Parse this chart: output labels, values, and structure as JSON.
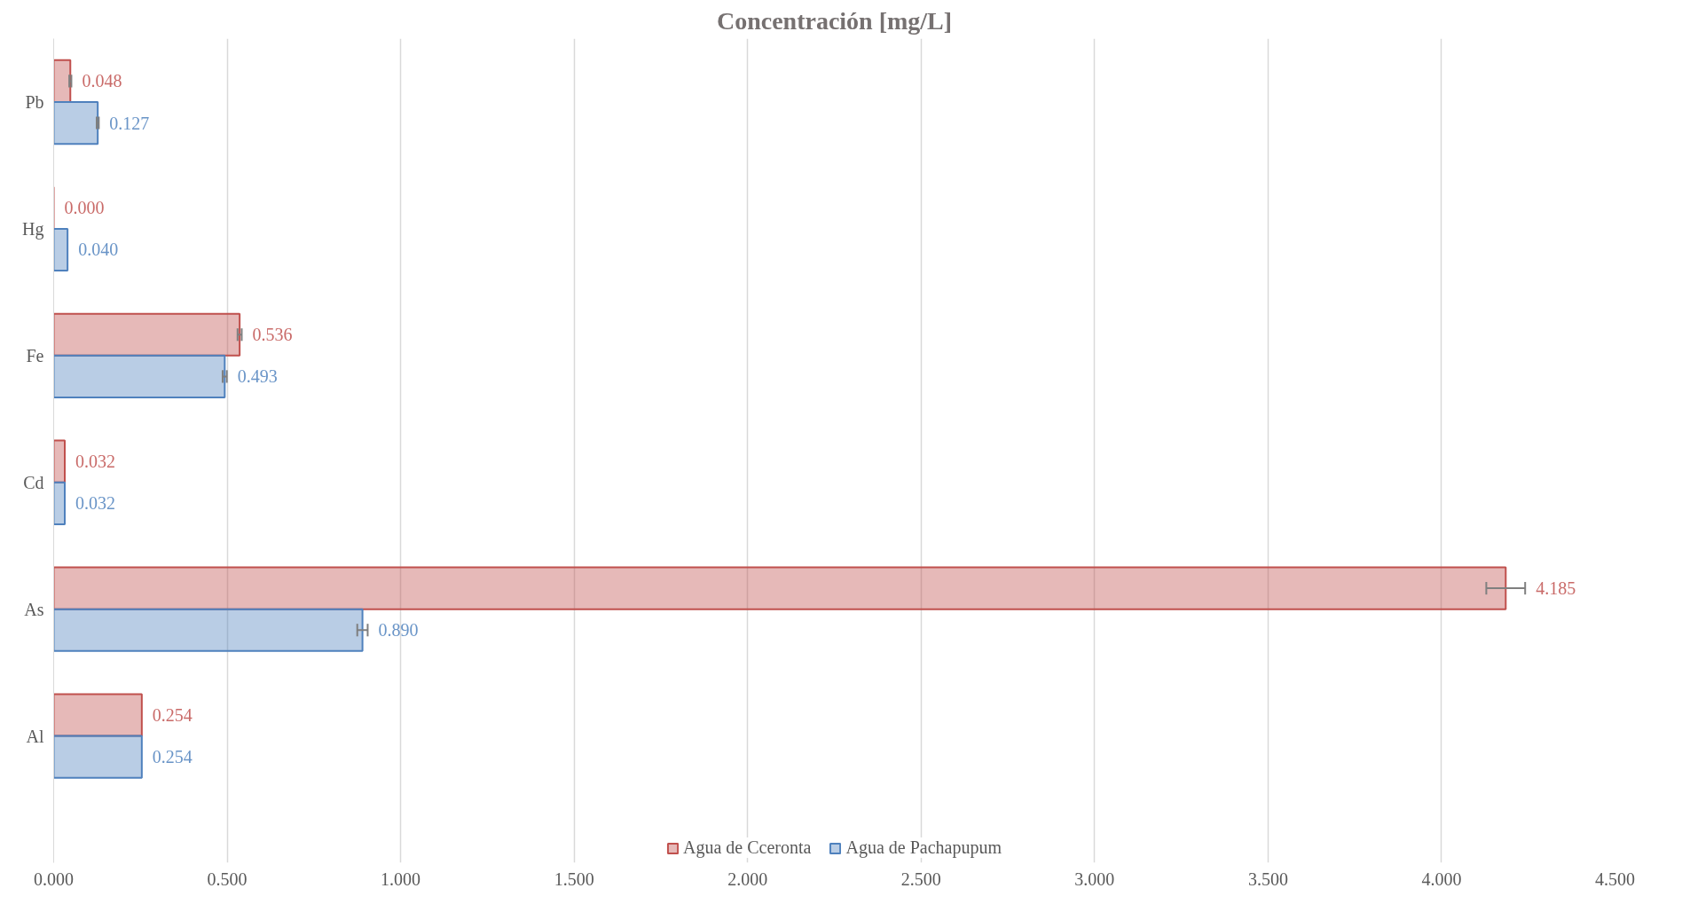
{
  "chart_data": {
    "type": "bar",
    "orientation": "horizontal",
    "title": "Concentración [mg/L]",
    "categories": [
      "Pb",
      "Hg",
      "Fe",
      "Cd",
      "As",
      "Al"
    ],
    "series": [
      {
        "name": "Agua de Cceronta",
        "color": "#c0504d",
        "values": [
          0.048,
          0.0,
          0.536,
          0.032,
          4.185,
          0.254
        ],
        "value_labels": [
          "0.048",
          "0.000",
          "0.536",
          "0.032",
          "4.185",
          "0.254"
        ],
        "errors": [
          0.003,
          null,
          0.006,
          null,
          0.056,
          null
        ]
      },
      {
        "name": "Agua de Pachapupum",
        "color": "#4f81bd",
        "values": [
          0.127,
          0.04,
          0.493,
          0.032,
          0.89,
          0.254
        ],
        "value_labels": [
          "0.127",
          "0.040",
          "0.493",
          "0.032",
          "0.890",
          "0.254"
        ],
        "errors": [
          0.003,
          null,
          0.006,
          null,
          0.015,
          null
        ]
      }
    ],
    "xlim": [
      0,
      4.5
    ],
    "xticks": [
      {
        "value": 0,
        "label": "0.000"
      },
      {
        "value": 0.5,
        "label": "0.500"
      },
      {
        "value": 1,
        "label": "1.000"
      },
      {
        "value": 1.5,
        "label": "1.500"
      },
      {
        "value": 2,
        "label": "2.000"
      },
      {
        "value": 2.5,
        "label": "2.500"
      },
      {
        "value": 3,
        "label": "3.000"
      },
      {
        "value": 3.5,
        "label": "3.500"
      },
      {
        "value": 4,
        "label": "4.000"
      },
      {
        "value": 4.5,
        "label": "4.500"
      }
    ],
    "grid": "x",
    "legend": "bottom"
  }
}
